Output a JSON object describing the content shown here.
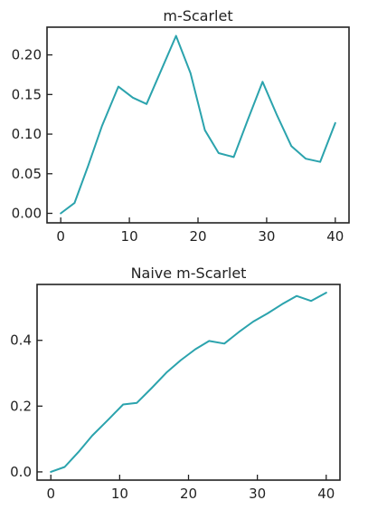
{
  "chart_data": [
    {
      "type": "line",
      "title": "m-Scarlet",
      "xlabel": "",
      "ylabel": "",
      "xlim": [
        -2,
        42
      ],
      "ylim": [
        -0.012,
        0.235
      ],
      "xticks": [
        0,
        10,
        20,
        30,
        40
      ],
      "xtick_labels": [
        "0",
        "10",
        "20",
        "30",
        "40"
      ],
      "yticks": [
        0.0,
        0.05,
        0.1,
        0.15,
        0.2
      ],
      "ytick_labels": [
        "0.00",
        "0.05",
        "0.10",
        "0.15",
        "0.20"
      ],
      "grid": false,
      "line_color": "#2ba3ad",
      "series": [
        {
          "x": [
            0,
            2,
            4,
            6,
            8.4,
            10.5,
            12.5,
            14.7,
            16.8,
            18.9,
            21,
            23,
            25.2,
            27.3,
            29.4,
            31.5,
            33.6,
            35.7,
            37.8,
            40
          ],
          "y": [
            0.0,
            0.013,
            0.06,
            0.11,
            0.16,
            0.146,
            0.138,
            0.182,
            0.224,
            0.177,
            0.105,
            0.076,
            0.071,
            0.119,
            0.166,
            0.124,
            0.085,
            0.069,
            0.065,
            0.114
          ]
        }
      ]
    },
    {
      "type": "line",
      "title": "Naive m-Scarlet",
      "xlabel": "",
      "ylabel": "",
      "xlim": [
        -2,
        42
      ],
      "ylim": [
        -0.025,
        0.57
      ],
      "xticks": [
        0,
        10,
        20,
        30,
        40
      ],
      "xtick_labels": [
        "0",
        "10",
        "20",
        "30",
        "40"
      ],
      "yticks": [
        0.0,
        0.2,
        0.4
      ],
      "ytick_labels": [
        "0.0",
        "0.2",
        "0.4"
      ],
      "grid": false,
      "line_color": "#2ba3ad",
      "series": [
        {
          "x": [
            0,
            2,
            4,
            6,
            8.4,
            10.5,
            12.5,
            14.7,
            16.8,
            18.9,
            21,
            23,
            25.2,
            27.3,
            29.4,
            31.5,
            33.6,
            35.7,
            37.8,
            40
          ],
          "y": [
            0.0,
            0.015,
            0.06,
            0.11,
            0.16,
            0.205,
            0.21,
            0.256,
            0.302,
            0.34,
            0.373,
            0.398,
            0.39,
            0.425,
            0.457,
            0.482,
            0.51,
            0.535,
            0.52,
            0.545
          ]
        }
      ]
    }
  ]
}
